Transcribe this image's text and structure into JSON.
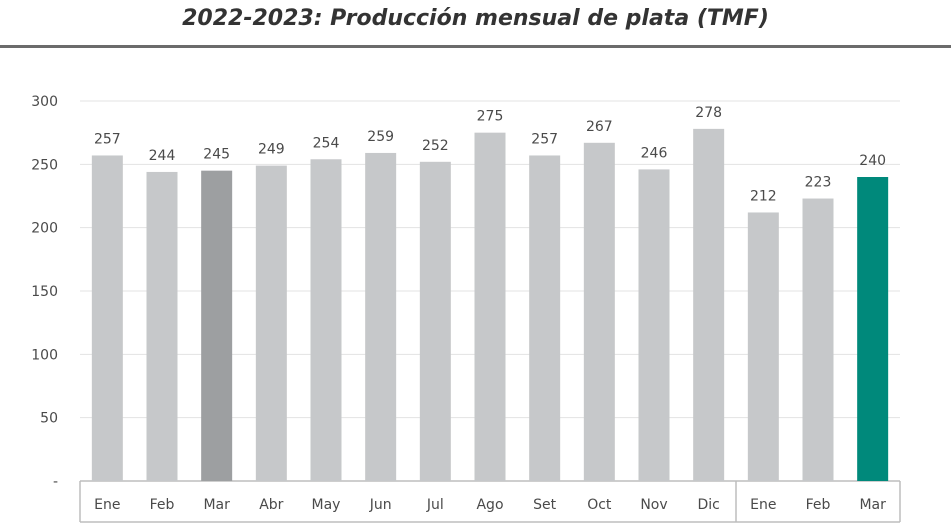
{
  "title": "2022-2023: Producción mensual de plata (TMF)",
  "colors": {
    "bar": "#c6c8ca",
    "bar_highlight_prev": "#9d9fa1",
    "bar_highlight_current": "#00897b",
    "grid": "#e3e3e3",
    "text": "#4a4a4a"
  },
  "chart_data": {
    "type": "bar",
    "title": "2022-2023: Producción mensual de plata (TMF)",
    "xlabel": "",
    "ylabel": "",
    "ylim": [
      0,
      300
    ],
    "yticks": [
      0,
      50,
      100,
      150,
      200,
      250,
      300
    ],
    "ytick_labels": [
      "-",
      "50",
      "100",
      "150",
      "200",
      "250",
      "300"
    ],
    "categories": [
      "Ene",
      "Feb",
      "Mar",
      "Abr",
      "May",
      "Jun",
      "Jul",
      "Ago",
      "Set",
      "Oct",
      "Nov",
      "Dic",
      "Ene",
      "Feb",
      "Mar"
    ],
    "values": [
      257,
      244,
      245,
      249,
      254,
      259,
      252,
      275,
      257,
      267,
      246,
      278,
      212,
      223,
      240
    ],
    "groups": [
      {
        "start": 0,
        "end": 11
      },
      {
        "start": 12,
        "end": 14
      }
    ],
    "highlight_prev_index": 2,
    "highlight_current_index": 14,
    "grid": true,
    "legend": "none"
  }
}
